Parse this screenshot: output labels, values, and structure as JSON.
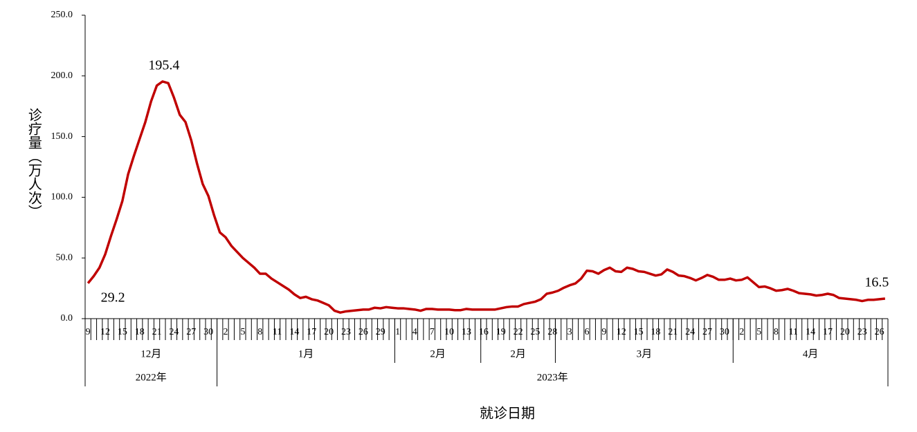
{
  "chart_data": {
    "type": "line",
    "y_label": "诊疗量（万人次）",
    "x_label": "就诊日期",
    "color": "#c00000",
    "ylim": [
      0,
      250
    ],
    "yticks": [
      {
        "value": 0,
        "label": "0.0"
      },
      {
        "value": 50,
        "label": "50.0"
      },
      {
        "value": 100,
        "label": "100.0"
      },
      {
        "value": 150,
        "label": "150.0"
      },
      {
        "value": 200,
        "label": "200.0"
      },
      {
        "value": 250,
        "label": "250.0"
      }
    ],
    "grid": false,
    "years": [
      {
        "label": "2022年",
        "months": [
          {
            "label": "12月",
            "days": [
              9,
              null,
              null,
              12,
              null,
              null,
              15,
              null,
              null,
              18,
              null,
              null,
              21,
              null,
              null,
              24,
              null,
              null,
              27,
              null,
              null,
              30,
              null
            ]
          }
        ]
      },
      {
        "label": "2023年",
        "months": [
          {
            "label": "1月",
            "days": [
              null,
              2,
              null,
              null,
              5,
              null,
              null,
              8,
              null,
              null,
              11,
              null,
              null,
              14,
              null,
              null,
              17,
              null,
              null,
              20,
              null,
              null,
              23,
              null,
              null,
              26,
              null,
              null,
              29,
              null,
              null
            ]
          },
          {
            "label": "2月",
            "days": [
              1,
              null,
              null,
              4,
              null,
              null,
              7,
              null,
              null,
              10,
              null,
              null,
              13,
              null,
              null
            ]
          },
          {
            "label": "2月",
            "days": [
              16,
              null,
              null,
              19,
              null,
              null,
              22,
              null,
              null,
              25,
              null,
              null,
              28
            ]
          },
          {
            "label": "3月",
            "days": [
              null,
              null,
              3,
              null,
              null,
              6,
              null,
              null,
              9,
              null,
              null,
              12,
              null,
              null,
              15,
              null,
              null,
              18,
              null,
              null,
              21,
              null,
              null,
              24,
              null,
              null,
              27,
              null,
              null,
              30,
              null
            ]
          },
          {
            "label": "4月",
            "days": [
              null,
              2,
              null,
              null,
              5,
              null,
              null,
              8,
              null,
              null,
              11,
              null,
              null,
              14,
              null,
              null,
              17,
              null,
              null,
              20,
              null,
              null,
              23,
              null,
              null,
              26,
              null
            ]
          }
        ]
      }
    ],
    "values": [
      29.2,
      35,
      42,
      53,
      68,
      82,
      97,
      119,
      134,
      148,
      162,
      179,
      192,
      195.4,
      194,
      182,
      168,
      162,
      147,
      128,
      111,
      101,
      85,
      71,
      67,
      60,
      55,
      50,
      46,
      42,
      37,
      37,
      33,
      30,
      27,
      24,
      20,
      17,
      18,
      16,
      15,
      13,
      11,
      6.5,
      5,
      6,
      6.5,
      7,
      7.5,
      7.5,
      9,
      8.5,
      9.5,
      9,
      8.5,
      8.5,
      8,
      7.5,
      6.5,
      8,
      8,
      7.5,
      7.5,
      7.5,
      7,
      7,
      8,
      7.5,
      7.5,
      7.5,
      7.5,
      7.5,
      8.5,
      9.5,
      10,
      10,
      12,
      13,
      14,
      16,
      20.5,
      21.5,
      23,
      25.5,
      27.5,
      29,
      33,
      39.5,
      39,
      37,
      40,
      42,
      39,
      38.5,
      42,
      41,
      39,
      38.5,
      37,
      35.5,
      36.5,
      40.5,
      38.5,
      35.5,
      35,
      33.5,
      31.5,
      33.5,
      36,
      34.5,
      32,
      32,
      33,
      31.5,
      32,
      34,
      30,
      26,
      26.5,
      25,
      23,
      23.5,
      24.5,
      23,
      21,
      20.5,
      20,
      19,
      19.5,
      20.5,
      19.5,
      17,
      16.5,
      16,
      15.5,
      14.5,
      15.5,
      15.5,
      16,
      16.5
    ],
    "value_labels": [
      "29.2",
      null,
      null,
      null,
      null,
      null,
      null,
      null,
      null,
      null,
      null,
      null,
      null,
      "195.4",
      null,
      null,
      null,
      null,
      null,
      null,
      null,
      null,
      null,
      null,
      null,
      null,
      null,
      null,
      null,
      null,
      null,
      null,
      null,
      null,
      null,
      null,
      null,
      null,
      null,
      null,
      null,
      null,
      null,
      null,
      null,
      null,
      null,
      null,
      null,
      null,
      null,
      null,
      null,
      null,
      null,
      null,
      null,
      null,
      null,
      null,
      null,
      null,
      null,
      null,
      null,
      null,
      null,
      null,
      null,
      null,
      null,
      null,
      null,
      null,
      null,
      null,
      null,
      null,
      null,
      null,
      null,
      null,
      null,
      null,
      null,
      null,
      null,
      null,
      null,
      null,
      null,
      null,
      null,
      null,
      null,
      null,
      null,
      null,
      null,
      null,
      null,
      null,
      null,
      null,
      null,
      null,
      null,
      null,
      null,
      null,
      null,
      null,
      null,
      null,
      null,
      null,
      null,
      null,
      null,
      null,
      null,
      null,
      null,
      null,
      null,
      null,
      null,
      null,
      null,
      null,
      null,
      null,
      null,
      null,
      null,
      null,
      null,
      null,
      null,
      "16.5"
    ]
  }
}
